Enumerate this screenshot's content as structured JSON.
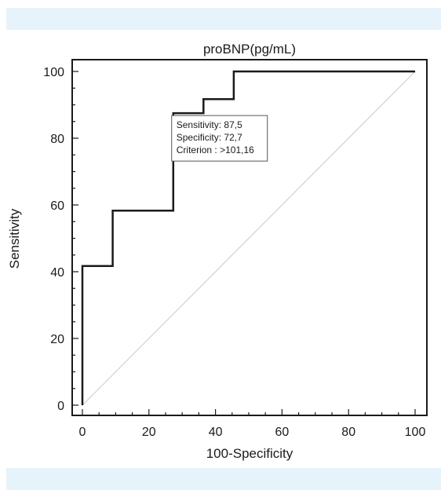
{
  "chart_data": {
    "type": "line",
    "title": "proBNP(pg/mL)",
    "xlabel": "100-Specificity",
    "ylabel": "Sensitivity",
    "xlim": [
      0,
      100
    ],
    "ylim": [
      0,
      100
    ],
    "xticks": [
      0,
      20,
      40,
      60,
      80,
      100
    ],
    "yticks": [
      0,
      20,
      40,
      60,
      80,
      100
    ],
    "series": [
      {
        "values": [
          {
            "x": 0,
            "y": 0
          },
          {
            "x": 0,
            "y": 41.7
          },
          {
            "x": 9.1,
            "y": 41.7
          },
          {
            "x": 9.1,
            "y": 58.3
          },
          {
            "x": 27.3,
            "y": 58.3
          },
          {
            "x": 27.3,
            "y": 87.5
          },
          {
            "x": 36.4,
            "y": 87.5
          },
          {
            "x": 36.4,
            "y": 91.7
          },
          {
            "x": 45.5,
            "y": 91.7
          },
          {
            "x": 45.5,
            "y": 100
          },
          {
            "x": 100,
            "y": 100
          }
        ],
        "color": "#1a1a1a"
      }
    ],
    "reference_line": {
      "from": [
        0,
        0
      ],
      "to": [
        100,
        100
      ],
      "color": "#c8c8c8"
    },
    "annotation": {
      "lines": [
        "Sensitivity: 87,5",
        "Specificity: 72,7",
        "Criterion : >101,16"
      ],
      "anchor": {
        "x": 27.3,
        "y": 87.5
      }
    },
    "grid": false
  }
}
